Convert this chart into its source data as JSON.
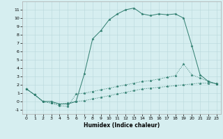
{
  "title": "",
  "xlabel": "Humidex (Indice chaleur)",
  "bg_color": "#d6eef0",
  "grid_color": "#b8d8db",
  "line_color": "#2e7d6e",
  "xlim": [
    -0.5,
    23.5
  ],
  "ylim": [
    -1.5,
    12.0
  ],
  "xticks": [
    0,
    1,
    2,
    3,
    4,
    5,
    6,
    7,
    8,
    9,
    10,
    11,
    12,
    13,
    14,
    15,
    16,
    17,
    18,
    19,
    20,
    21,
    22,
    23
  ],
  "yticks": [
    -1,
    0,
    1,
    2,
    3,
    4,
    5,
    6,
    7,
    8,
    9,
    10,
    11
  ],
  "line1_x": [
    0,
    1,
    2,
    3,
    4,
    5,
    6,
    7,
    8,
    9,
    10,
    11,
    12,
    13,
    14,
    15,
    16,
    17,
    18,
    19,
    20,
    21,
    22,
    23
  ],
  "line1_y": [
    1.5,
    0.8,
    0.0,
    0.0,
    -0.3,
    -0.3,
    0.0,
    3.3,
    7.5,
    8.5,
    9.8,
    10.5,
    11.0,
    11.2,
    10.5,
    10.3,
    10.5,
    10.4,
    10.5,
    10.0,
    6.7,
    3.2,
    2.4,
    2.1
  ],
  "line2_x": [
    0,
    1,
    2,
    3,
    4,
    5,
    6,
    7,
    8,
    9,
    10,
    11,
    12,
    13,
    14,
    15,
    16,
    17,
    18,
    19,
    20,
    21,
    22,
    23
  ],
  "line2_y": [
    1.5,
    0.8,
    0.0,
    -0.2,
    -0.5,
    -0.6,
    0.9,
    1.0,
    1.2,
    1.4,
    1.6,
    1.8,
    2.0,
    2.2,
    2.4,
    2.5,
    2.7,
    2.9,
    3.1,
    4.5,
    3.2,
    2.8,
    2.4,
    2.1
  ],
  "line3_x": [
    0,
    1,
    2,
    3,
    4,
    5,
    6,
    7,
    8,
    9,
    10,
    11,
    12,
    13,
    14,
    15,
    16,
    17,
    18,
    19,
    20,
    21,
    22,
    23
  ],
  "line3_y": [
    1.5,
    0.8,
    0.0,
    -0.2,
    -0.3,
    -0.2,
    0.0,
    0.1,
    0.3,
    0.5,
    0.7,
    0.9,
    1.1,
    1.3,
    1.5,
    1.6,
    1.7,
    1.8,
    1.9,
    2.0,
    2.1,
    2.2,
    2.2,
    2.2
  ],
  "xlabel_fontsize": 5.5,
  "tick_fontsize": 4.5,
  "linewidth": 0.7,
  "markersize": 2.5
}
